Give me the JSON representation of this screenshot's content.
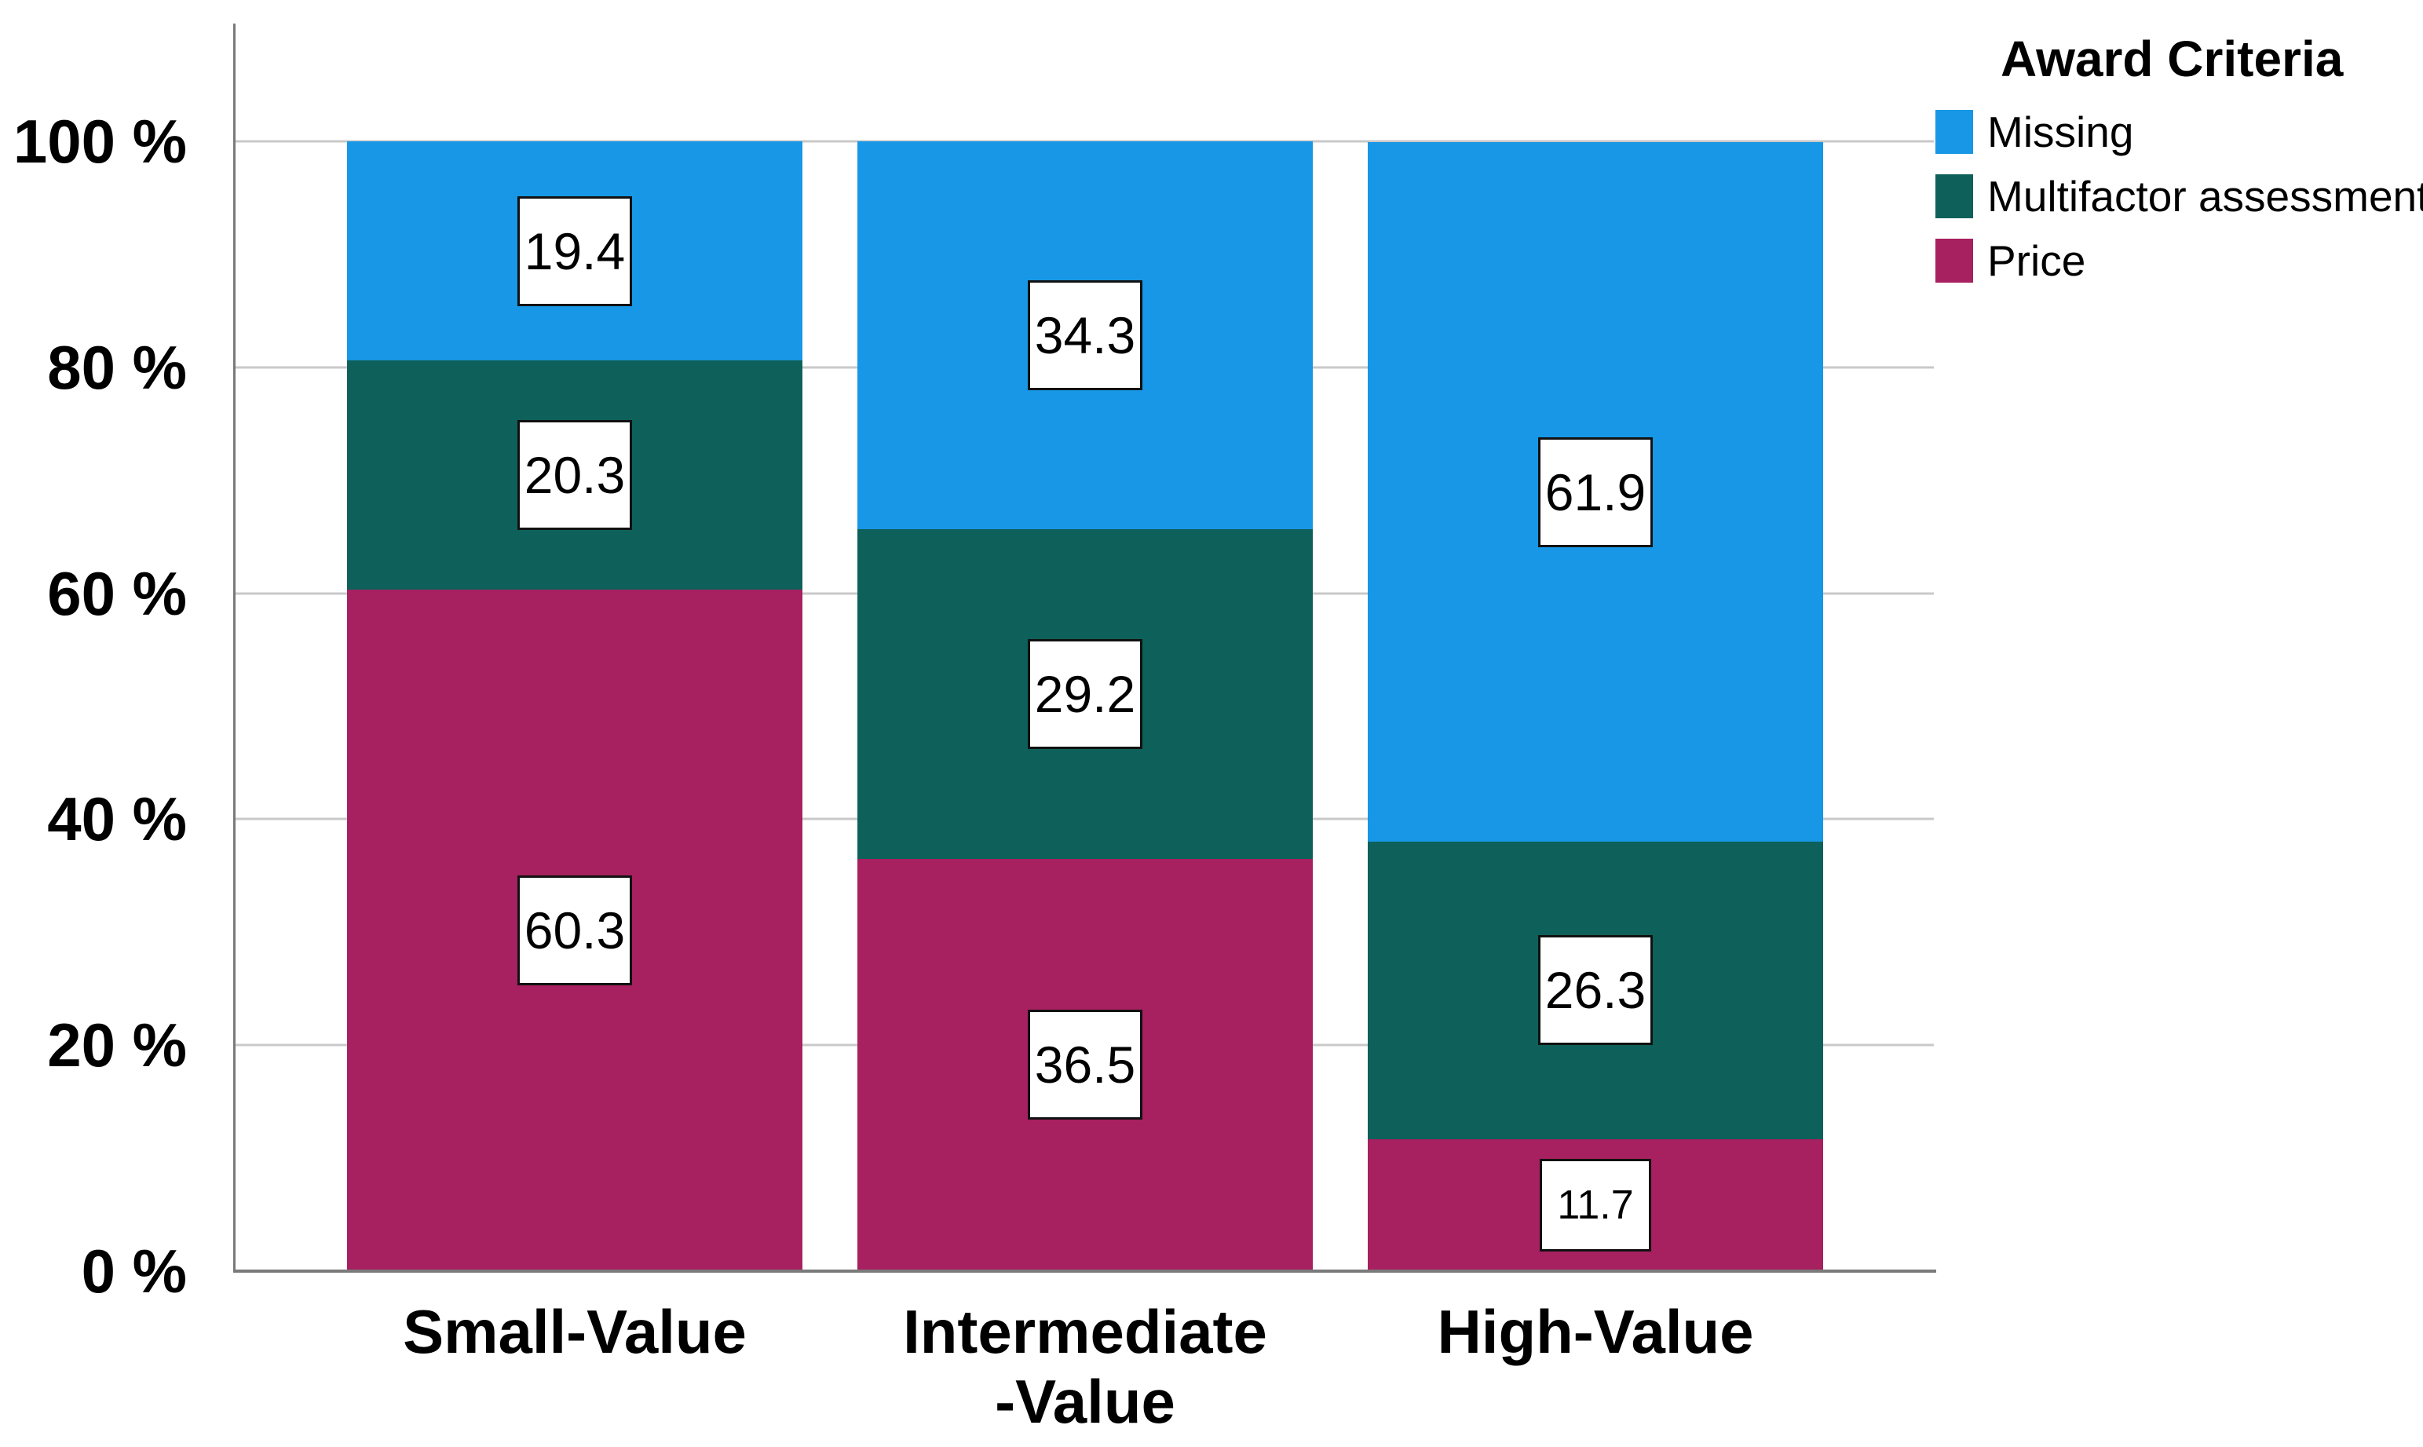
{
  "chart_data": {
    "type": "bar",
    "stacked": true,
    "orientation": "vertical",
    "categories": [
      {
        "lines": [
          "Small-Value"
        ]
      },
      {
        "lines": [
          "Intermediate",
          "-Value"
        ]
      },
      {
        "lines": [
          "High-Value"
        ]
      }
    ],
    "series": [
      {
        "name": "Price",
        "color": "#a7205f",
        "values": [
          60.3,
          36.5,
          11.7
        ]
      },
      {
        "name": "Multifactor assessment",
        "color": "#0e615a",
        "values": [
          20.3,
          29.2,
          26.3
        ]
      },
      {
        "name": "Missing",
        "color": "#1797e5",
        "values": [
          19.4,
          34.3,
          61.9
        ]
      }
    ],
    "stacking_note": "series listed bottom-to-top; data labels shown in white boxes on each segment",
    "ylim": [
      0,
      100
    ],
    "yticks": [
      {
        "v": 0,
        "label": "0 %"
      },
      {
        "v": 20,
        "label": "20 %"
      },
      {
        "v": 40,
        "label": "40 %"
      },
      {
        "v": 60,
        "label": "60 %"
      },
      {
        "v": 80,
        "label": "80 %"
      },
      {
        "v": 100,
        "label": "100 %"
      }
    ],
    "grid": "horizontal",
    "legend": {
      "title": "Award Criteria",
      "position": "top-right",
      "items": [
        "Missing",
        "Multifactor assessment",
        "Price"
      ]
    },
    "colors": {
      "gridline": "#c9c9c9",
      "axis": "#7a7a7a",
      "label_box_bg": "#ffffff",
      "label_box_border": "#111111",
      "text": "#000000"
    }
  }
}
